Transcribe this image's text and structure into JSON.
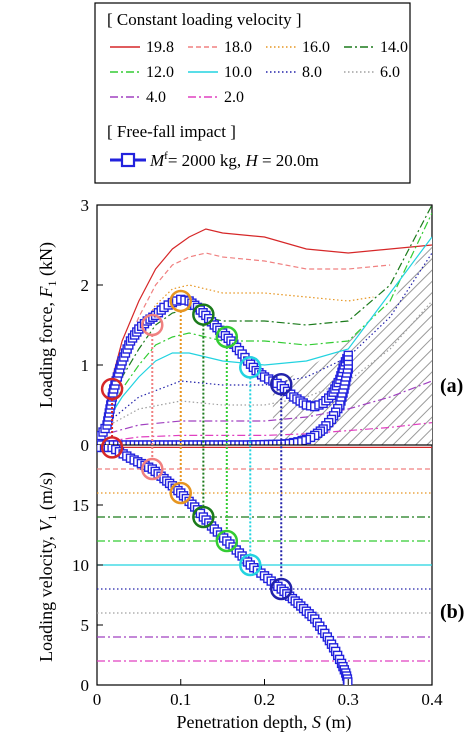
{
  "legend": {
    "group1_title": "[ Constant loading velocity ]",
    "group2_title": "[ Free-fall impact ]",
    "entries": [
      {
        "label": "19.8",
        "color": "#d62728",
        "dash": "solid"
      },
      {
        "label": "18.0",
        "color": "#f08080",
        "dash": "dash"
      },
      {
        "label": "16.0",
        "color": "#e69520",
        "dash": "dot"
      },
      {
        "label": "14.0",
        "color": "#1b7a1b",
        "dash": "dashdot"
      },
      {
        "label": "12.0",
        "color": "#33cc33",
        "dash": "dashdot"
      },
      {
        "label": "10.0",
        "color": "#22d3e0",
        "dash": "solid"
      },
      {
        "label": "8.0",
        "color": "#2222aa",
        "dash": "dot"
      },
      {
        "label": "6.0",
        "color": "#a0a0a0",
        "dash": "dot"
      },
      {
        "label": "4.0",
        "color": "#a040c0",
        "dash": "dashdot"
      },
      {
        "label": "2.0",
        "color": "#e040c0",
        "dash": "dashdot"
      }
    ],
    "freefall_label_parts": {
      "m": "M",
      "sup": "f",
      "rest": "= 2000 kg, ",
      "h": "H",
      "rest2": " = 20.0m"
    },
    "freefall_color": "#2222dd"
  },
  "chart_data": [
    {
      "type": "line",
      "panel": "(a)",
      "ylabel_parts": {
        "main": "Loading force, ",
        "var": "F",
        "sub": "1",
        "unit": " (kN)"
      },
      "xlim": [
        0,
        0.4
      ],
      "ylim": [
        0,
        3
      ],
      "yticks": [
        "0",
        "1",
        "2",
        "3"
      ],
      "series": [
        {
          "name": "19.8",
          "x": [
            0.015,
            0.03,
            0.05,
            0.07,
            0.09,
            0.11,
            0.13,
            0.15,
            0.2,
            0.25,
            0.3,
            0.35,
            0.4
          ],
          "y": [
            0.7,
            1.3,
            1.8,
            2.2,
            2.45,
            2.6,
            2.7,
            2.65,
            2.6,
            2.45,
            2.4,
            2.45,
            2.5
          ]
        },
        {
          "name": "18.0",
          "x": [
            0.015,
            0.03,
            0.05,
            0.07,
            0.09,
            0.11,
            0.13,
            0.15,
            0.2,
            0.25,
            0.3,
            0.35
          ],
          "y": [
            0.6,
            1.1,
            1.6,
            2.0,
            2.25,
            2.35,
            2.4,
            2.35,
            2.3,
            2.2,
            2.2,
            2.25
          ]
        },
        {
          "name": "16.0",
          "x": [
            0.015,
            0.03,
            0.05,
            0.07,
            0.09,
            0.11,
            0.13,
            0.15,
            0.2,
            0.25,
            0.3,
            0.33
          ],
          "y": [
            0.5,
            0.95,
            1.4,
            1.75,
            1.95,
            2.0,
            1.95,
            1.9,
            1.9,
            1.85,
            1.8,
            1.85
          ]
        },
        {
          "name": "14.0",
          "x": [
            0.015,
            0.03,
            0.05,
            0.07,
            0.09,
            0.11,
            0.13,
            0.15,
            0.2,
            0.25,
            0.3,
            0.35,
            0.4
          ],
          "y": [
            0.45,
            0.85,
            1.2,
            1.5,
            1.65,
            1.7,
            1.6,
            1.55,
            1.55,
            1.5,
            1.55,
            2.0,
            3.0
          ]
        },
        {
          "name": "12.0",
          "x": [
            0.015,
            0.03,
            0.05,
            0.07,
            0.09,
            0.11,
            0.13,
            0.15,
            0.2,
            0.25,
            0.3,
            0.35,
            0.4
          ],
          "y": [
            0.4,
            0.7,
            1.0,
            1.25,
            1.35,
            1.4,
            1.35,
            1.3,
            1.3,
            1.25,
            1.3,
            1.8,
            2.9
          ]
        },
        {
          "name": "10.0",
          "x": [
            0.015,
            0.03,
            0.05,
            0.07,
            0.09,
            0.11,
            0.13,
            0.15,
            0.2,
            0.25,
            0.3,
            0.35,
            0.4
          ],
          "y": [
            0.35,
            0.6,
            0.85,
            1.05,
            1.15,
            1.15,
            1.1,
            1.05,
            1.0,
            1.05,
            1.2,
            1.9,
            2.6
          ]
        },
        {
          "name": "8.0",
          "x": [
            0.015,
            0.05,
            0.1,
            0.15,
            0.2,
            0.25,
            0.3,
            0.35,
            0.4
          ],
          "y": [
            0.3,
            0.6,
            0.8,
            0.75,
            0.75,
            0.85,
            1.1,
            1.6,
            2.4
          ]
        },
        {
          "name": "6.0",
          "x": [
            0.015,
            0.05,
            0.1,
            0.15,
            0.2,
            0.25,
            0.3,
            0.35,
            0.4
          ],
          "y": [
            0.25,
            0.45,
            0.55,
            0.5,
            0.5,
            0.6,
            0.8,
            1.2,
            1.8
          ]
        },
        {
          "name": "4.0",
          "x": [
            0.015,
            0.05,
            0.1,
            0.15,
            0.2,
            0.25,
            0.3,
            0.35,
            0.4
          ],
          "y": [
            0.15,
            0.25,
            0.3,
            0.3,
            0.3,
            0.35,
            0.45,
            0.6,
            0.8
          ]
        },
        {
          "name": "2.0",
          "x": [
            0.015,
            0.05,
            0.1,
            0.15,
            0.2,
            0.25,
            0.3,
            0.35,
            0.4
          ],
          "y": [
            0.05,
            0.1,
            0.12,
            0.12,
            0.12,
            0.14,
            0.18,
            0.22,
            0.28
          ]
        },
        {
          "name": "Free-fall",
          "x": [
            0.0,
            0.012,
            0.02,
            0.03,
            0.04,
            0.05,
            0.06,
            0.07,
            0.08,
            0.09,
            0.1,
            0.11,
            0.12,
            0.13,
            0.14,
            0.15,
            0.16,
            0.17,
            0.18,
            0.19,
            0.2,
            0.21,
            0.22,
            0.235,
            0.25,
            0.26,
            0.27,
            0.28,
            0.29,
            0.295,
            0.3,
            0.3,
            0.295,
            0.29,
            0.28,
            0.27,
            0.26,
            0.25,
            0.24,
            0.23,
            0.22,
            0.2,
            0.18,
            0.16,
            0.14,
            0.12,
            0.1,
            0.05,
            0.0
          ],
          "y": [
            0.03,
            0.25,
            0.7,
            1.05,
            1.3,
            1.45,
            1.55,
            1.62,
            1.72,
            1.78,
            1.82,
            1.8,
            1.72,
            1.62,
            1.5,
            1.4,
            1.3,
            1.18,
            1.05,
            0.93,
            0.85,
            0.8,
            0.74,
            0.6,
            0.5,
            0.48,
            0.52,
            0.62,
            0.82,
            1.0,
            1.12,
            0.95,
            0.7,
            0.5,
            0.32,
            0.2,
            0.12,
            0.07,
            0.04,
            0.02,
            0.01,
            0.005,
            0.0,
            0.0,
            0.0,
            0.0,
            0.0,
            0.0,
            0.0
          ]
        }
      ],
      "circles": [
        {
          "color": "#d62728",
          "x": 0.018,
          "y": 0.7
        },
        {
          "color": "#f08080",
          "x": 0.066,
          "y": 1.5
        },
        {
          "color": "#e69520",
          "x": 0.1,
          "y": 1.8
        },
        {
          "color": "#1b7a1b",
          "x": 0.127,
          "y": 1.63
        },
        {
          "color": "#33cc33",
          "x": 0.155,
          "y": 1.35
        },
        {
          "color": "#22d3e0",
          "x": 0.183,
          "y": 0.97
        },
        {
          "color": "#2222aa",
          "x": 0.22,
          "y": 0.76
        }
      ],
      "hatch_polygon_x": [
        0.21,
        0.25,
        0.28,
        0.3,
        0.35,
        0.4,
        0.4,
        0.3,
        0.21
      ],
      "hatch_polygon_y": [
        0.75,
        0.95,
        1.15,
        1.3,
        1.75,
        2.6,
        0.0,
        0.0,
        0.0
      ]
    },
    {
      "type": "line",
      "panel": "(b)",
      "ylabel_parts": {
        "main": "Loading velocity, ",
        "var": "V",
        "sub": "1",
        "unit": " (m/s)"
      },
      "xlabel_parts": {
        "main": "Penetration depth, ",
        "var": "S",
        "unit": " (m)"
      },
      "xlim": [
        0,
        0.4
      ],
      "ylim": [
        0,
        20
      ],
      "yticks": [
        "0",
        "5",
        "10",
        "15"
      ],
      "xticks": [
        "0",
        "0.1",
        "0.2",
        "0.3",
        "0.4"
      ],
      "hlines": [
        {
          "name": "19.8",
          "y": 19.8
        },
        {
          "name": "18.0",
          "y": 18.0
        },
        {
          "name": "16.0",
          "y": 16.0
        },
        {
          "name": "14.0",
          "y": 14.0
        },
        {
          "name": "12.0",
          "y": 12.0
        },
        {
          "name": "10.0",
          "y": 10.0
        },
        {
          "name": "8.0",
          "y": 8.0
        },
        {
          "name": "6.0",
          "y": 6.0
        },
        {
          "name": "4.0",
          "y": 4.0
        },
        {
          "name": "2.0",
          "y": 2.0
        }
      ],
      "freefall": {
        "x": [
          0.0,
          0.018,
          0.04,
          0.066,
          0.08,
          0.1,
          0.12,
          0.127,
          0.14,
          0.155,
          0.17,
          0.183,
          0.2,
          0.22,
          0.24,
          0.26,
          0.275,
          0.285,
          0.292,
          0.297,
          0.299,
          0.3
        ],
        "y": [
          19.8,
          19.8,
          18.9,
          18.0,
          17.2,
          16.0,
          14.6,
          14.0,
          13.0,
          12.0,
          11.0,
          10.0,
          9.1,
          8.0,
          6.8,
          5.5,
          4.0,
          2.8,
          1.8,
          1.0,
          0.5,
          0.0
        ]
      },
      "circles": [
        {
          "color": "#d62728",
          "x": 0.018,
          "y": 19.8
        },
        {
          "color": "#f08080",
          "x": 0.066,
          "y": 18.0
        },
        {
          "color": "#e69520",
          "x": 0.1,
          "y": 16.0
        },
        {
          "color": "#1b7a1b",
          "x": 0.127,
          "y": 14.0
        },
        {
          "color": "#33cc33",
          "x": 0.155,
          "y": 12.0
        },
        {
          "color": "#22d3e0",
          "x": 0.183,
          "y": 10.0
        },
        {
          "color": "#2222aa",
          "x": 0.22,
          "y": 8.0
        }
      ]
    }
  ]
}
